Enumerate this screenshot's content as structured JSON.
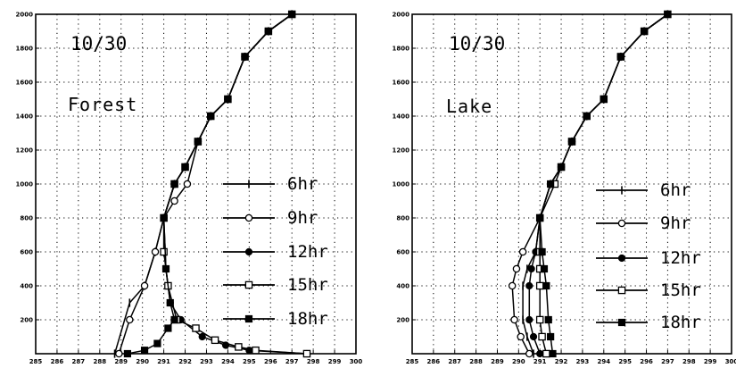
{
  "chart_data": [
    {
      "type": "line",
      "date": "10/30",
      "label": "Forest",
      "xlim": [
        285,
        300
      ],
      "ylim": [
        0,
        2000
      ],
      "xticks": [
        "285",
        "286",
        "287",
        "288",
        "289",
        "290",
        "291",
        "292",
        "293",
        "294",
        "295",
        "296",
        "297",
        "298",
        "299",
        "300"
      ],
      "yticks": [
        "200",
        "400",
        "600",
        "800",
        "1000",
        "1200",
        "1400",
        "1600",
        "1800",
        "2000"
      ],
      "grid": true,
      "legend_position": "right",
      "series": [
        {
          "name": "6hr",
          "marker": "plus",
          "x": [
            288.7,
            289.4,
            290.1,
            290.6,
            291.0,
            291.5,
            292.0,
            292.6,
            293.2,
            294.0,
            294.8,
            295.9,
            297.0
          ],
          "y": [
            0,
            300,
            400,
            600,
            800,
            1000,
            1100,
            1250,
            1400,
            1500,
            1750,
            1900,
            2000
          ]
        },
        {
          "name": "9hr",
          "marker": "circle-open",
          "x": [
            288.9,
            289.4,
            290.1,
            290.6,
            291.0,
            291.5,
            292.1,
            292.6,
            293.2,
            294.0,
            294.8,
            295.9,
            297.0
          ],
          "y": [
            0,
            200,
            400,
            600,
            800,
            900,
            1000,
            1250,
            1400,
            1500,
            1750,
            1900,
            2000
          ]
        },
        {
          "name": "12hr",
          "marker": "circle-filled",
          "x": [
            297.7,
            295.0,
            293.9,
            292.8,
            291.8,
            291.3,
            291.1,
            291.0,
            291.5,
            292.0,
            292.6,
            293.2,
            294.0,
            294.8,
            295.9,
            297.0
          ],
          "y": [
            0,
            20,
            50,
            100,
            200,
            300,
            500,
            800,
            1000,
            1100,
            1250,
            1400,
            1500,
            1750,
            1900,
            2000
          ]
        },
        {
          "name": "15hr",
          "marker": "square-open",
          "x": [
            297.7,
            295.3,
            294.5,
            293.4,
            292.5,
            291.6,
            291.2,
            291.0,
            291.0,
            291.5,
            292.0,
            292.6,
            293.2,
            294.0,
            294.8,
            295.9,
            297.0
          ],
          "y": [
            0,
            20,
            40,
            80,
            150,
            200,
            400,
            600,
            800,
            1000,
            1100,
            1250,
            1400,
            1500,
            1750,
            1900,
            2000
          ]
        },
        {
          "name": "18hr",
          "marker": "square-filled",
          "x": [
            289.3,
            290.1,
            290.7,
            291.2,
            291.5,
            291.3,
            291.1,
            291.0,
            291.5,
            292.0,
            292.6,
            293.2,
            294.0,
            294.8,
            295.9,
            297.0
          ],
          "y": [
            0,
            20,
            60,
            150,
            200,
            300,
            500,
            800,
            1000,
            1100,
            1250,
            1400,
            1500,
            1750,
            1900,
            2000
          ]
        }
      ]
    },
    {
      "type": "line",
      "date": "10/30",
      "label": "Lake",
      "xlim": [
        285,
        300
      ],
      "ylim": [
        0,
        2000
      ],
      "xticks": [
        "285",
        "286",
        "287",
        "288",
        "289",
        "290",
        "291",
        "292",
        "293",
        "294",
        "295",
        "296",
        "297",
        "298",
        "299",
        "300"
      ],
      "yticks": [
        "200",
        "400",
        "600",
        "800",
        "1000",
        "1200",
        "1400",
        "1600",
        "1800",
        "2000"
      ],
      "grid": true,
      "legend_position": "right",
      "series": [
        {
          "name": "6hr",
          "marker": "plus",
          "x": [
            290.7,
            290.4,
            290.2,
            290.2,
            290.4,
            290.8,
            291.0,
            291.5,
            292.0,
            292.5,
            293.2,
            294.0,
            294.8,
            295.9,
            297.0
          ],
          "y": [
            0,
            100,
            200,
            400,
            500,
            600,
            800,
            1000,
            1100,
            1250,
            1400,
            1500,
            1750,
            1900,
            2000
          ]
        },
        {
          "name": "9hr",
          "marker": "circle-open",
          "x": [
            290.5,
            290.1,
            289.8,
            289.7,
            289.9,
            290.2,
            291.0,
            291.5,
            292.0,
            292.5,
            293.2,
            294.0,
            294.8,
            295.9,
            297.0
          ],
          "y": [
            0,
            100,
            200,
            400,
            500,
            600,
            800,
            1000,
            1100,
            1250,
            1400,
            1500,
            1750,
            1900,
            2000
          ]
        },
        {
          "name": "12hr",
          "marker": "circle-filled",
          "x": [
            291.0,
            290.7,
            290.5,
            290.5,
            290.6,
            290.8,
            291.0,
            291.5,
            292.0,
            292.5,
            293.2,
            294.0,
            294.8,
            295.9,
            297.0
          ],
          "y": [
            0,
            100,
            200,
            400,
            500,
            600,
            800,
            1000,
            1100,
            1250,
            1400,
            1500,
            1750,
            1900,
            2000
          ]
        },
        {
          "name": "15hr",
          "marker": "square-open",
          "x": [
            291.3,
            291.1,
            291.0,
            291.0,
            291.0,
            291.0,
            291.0,
            291.7,
            292.0,
            292.5,
            293.2,
            294.0,
            294.8,
            295.9,
            297.0
          ],
          "y": [
            0,
            100,
            200,
            400,
            500,
            600,
            800,
            1000,
            1100,
            1250,
            1400,
            1500,
            1750,
            1900,
            2000
          ]
        },
        {
          "name": "18hr",
          "marker": "square-filled",
          "x": [
            291.6,
            291.5,
            291.4,
            291.3,
            291.2,
            291.1,
            291.0,
            291.5,
            292.0,
            292.5,
            293.2,
            294.0,
            294.8,
            295.9,
            297.0
          ],
          "y": [
            0,
            100,
            200,
            400,
            500,
            600,
            800,
            1000,
            1100,
            1250,
            1400,
            1500,
            1750,
            1900,
            2000
          ]
        }
      ]
    }
  ]
}
